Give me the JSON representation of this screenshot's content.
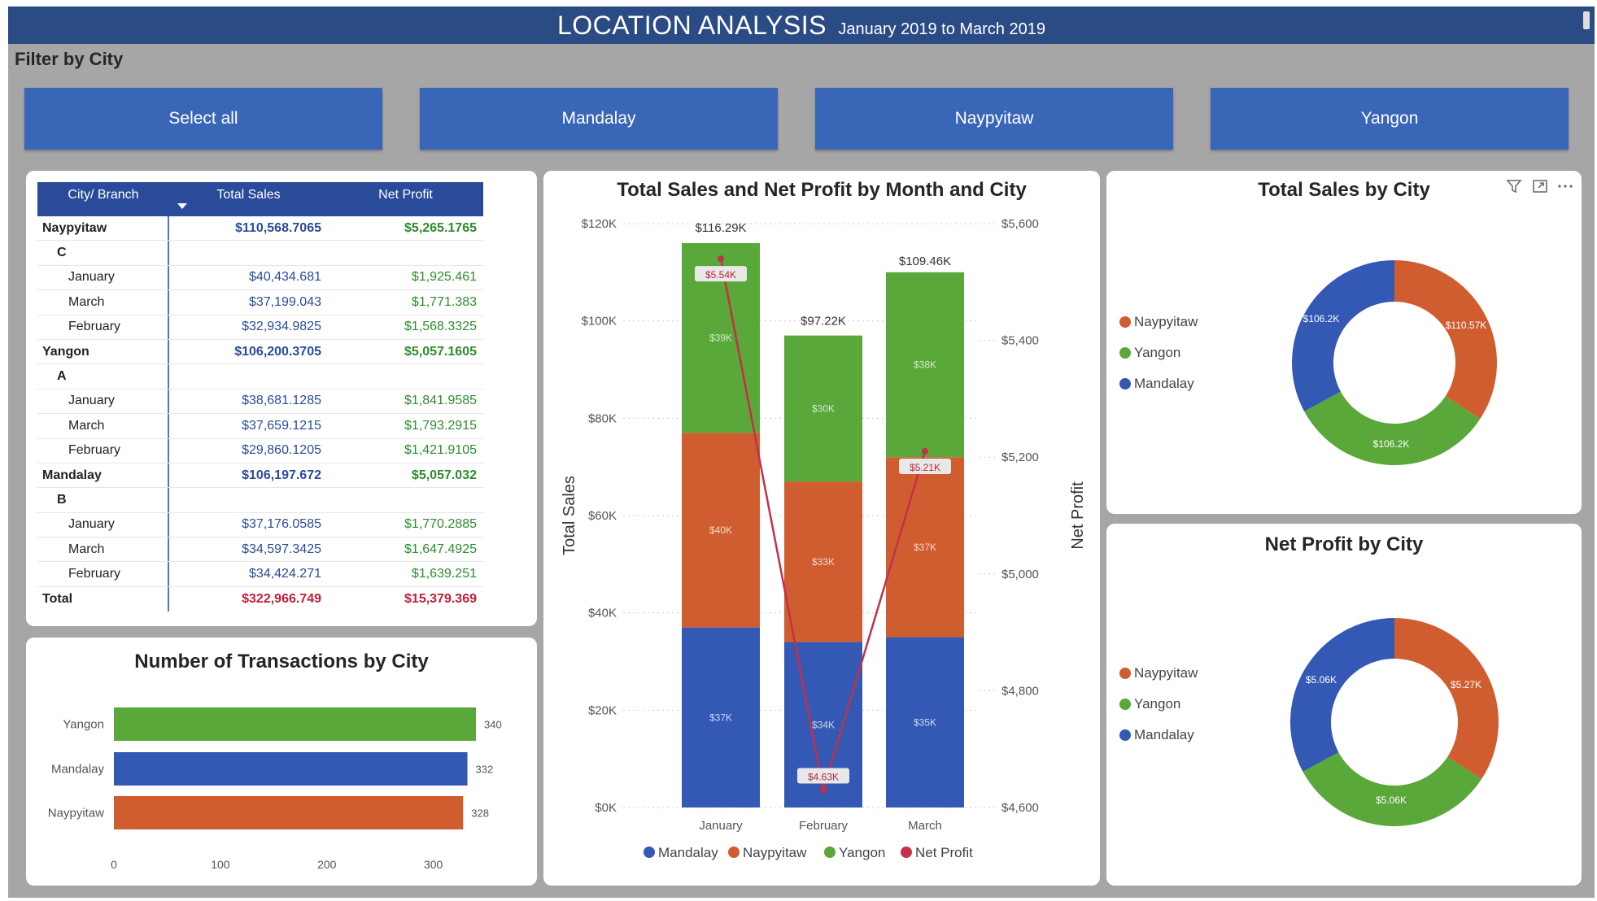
{
  "header": {
    "title": "LOCATION ANALYSIS",
    "subtitle": "January 2019 to March 2019"
  },
  "filter": {
    "label": "Filter by City",
    "buttons": [
      "Select all",
      "Mandalay",
      "Naypyitaw",
      "Yangon"
    ]
  },
  "colors": {
    "header_bg": "#2a4b84",
    "button_bg": "#3a66b8",
    "mandalay": "#3359b5",
    "naypyitaw": "#d05d30",
    "yangon": "#59a839",
    "net_profit": "#c3304a"
  },
  "matrix": {
    "headers": [
      "City/ Branch",
      "Total Sales",
      "Net Profit"
    ],
    "rows": [
      {
        "type": "city",
        "label": "Naypyitaw",
        "sales": "$110,568.7065",
        "profit": "$5,265.1765"
      },
      {
        "type": "branch",
        "label": "C",
        "sales": "",
        "profit": ""
      },
      {
        "type": "month",
        "label": "January",
        "sales": "$40,434.681",
        "profit": "$1,925.461"
      },
      {
        "type": "month",
        "label": "March",
        "sales": "$37,199.043",
        "profit": "$1,771.383"
      },
      {
        "type": "month",
        "label": "February",
        "sales": "$32,934.9825",
        "profit": "$1,568.3325"
      },
      {
        "type": "city",
        "label": "Yangon",
        "sales": "$106,200.3705",
        "profit": "$5,057.1605"
      },
      {
        "type": "branch",
        "label": "A",
        "sales": "",
        "profit": ""
      },
      {
        "type": "month",
        "label": "January",
        "sales": "$38,681.1285",
        "profit": "$1,841.9585"
      },
      {
        "type": "month",
        "label": "March",
        "sales": "$37,659.1215",
        "profit": "$1,793.2915"
      },
      {
        "type": "month",
        "label": "February",
        "sales": "$29,860.1205",
        "profit": "$1,421.9105"
      },
      {
        "type": "city",
        "label": "Mandalay",
        "sales": "$106,197.672",
        "profit": "$5,057.032"
      },
      {
        "type": "branch",
        "label": "B",
        "sales": "",
        "profit": ""
      },
      {
        "type": "month",
        "label": "January",
        "sales": "$37,176.0585",
        "profit": "$1,770.2885"
      },
      {
        "type": "month",
        "label": "March",
        "sales": "$34,597.3425",
        "profit": "$1,647.4925"
      },
      {
        "type": "month",
        "label": "February",
        "sales": "$34,424.271",
        "profit": "$1,639.251"
      },
      {
        "type": "total",
        "label": "Total",
        "sales": "$322,966.749",
        "profit": "$15,379.369"
      }
    ]
  },
  "chart_data": [
    {
      "id": "transactions",
      "type": "bar",
      "orientation": "horizontal",
      "title": "Number of Transactions by City",
      "categories": [
        "Yangon",
        "Mandalay",
        "Naypyitaw"
      ],
      "values": [
        340,
        332,
        328
      ],
      "value_labels": [
        "340",
        "332",
        "328"
      ],
      "colors": [
        "#59a839",
        "#3359b5",
        "#d05d30"
      ],
      "xlim": [
        0,
        340
      ],
      "xticks": [
        0,
        100,
        200,
        300
      ],
      "xtick_labels": [
        "0",
        "100",
        "200",
        "300"
      ]
    },
    {
      "id": "stacked",
      "type": "bar",
      "stacked": true,
      "title": "Total Sales and Net Profit by Month and City",
      "ylabel": "Total Sales",
      "y2label": "Net Profit",
      "categories": [
        "January",
        "February",
        "March"
      ],
      "ylim": [
        0,
        120000
      ],
      "yticks": [
        0,
        20000,
        40000,
        60000,
        80000,
        100000,
        120000
      ],
      "ytick_labels": [
        "$0K",
        "$20K",
        "$40K",
        "$60K",
        "$80K",
        "$100K",
        "$120K"
      ],
      "y2lim": [
        4600,
        5600
      ],
      "y2ticks": [
        4600,
        4800,
        5000,
        5200,
        5400,
        5600
      ],
      "y2tick_labels": [
        "$4,600",
        "$4,800",
        "$5,000",
        "$5,200",
        "$5,400",
        "$5,600"
      ],
      "series": [
        {
          "name": "Mandalay",
          "color": "#3359b5",
          "values": [
            37000,
            34000,
            35000
          ],
          "labels": [
            "$37K",
            "$34K",
            "$35K"
          ]
        },
        {
          "name": "Naypyitaw",
          "color": "#d05d30",
          "values": [
            40000,
            33000,
            37000
          ],
          "labels": [
            "$40K",
            "$33K",
            "$37K"
          ]
        },
        {
          "name": "Yangon",
          "color": "#59a839",
          "values": [
            39000,
            30000,
            38000
          ],
          "labels": [
            "$39K",
            "$30K",
            "$38K"
          ]
        }
      ],
      "totals": [
        116290,
        97220,
        109460
      ],
      "total_labels": [
        "$116.29K",
        "$97.22K",
        "$109.46K"
      ],
      "line": {
        "name": "Net Profit",
        "color": "#c3304a",
        "values": [
          5540,
          4630,
          5210
        ],
        "labels": [
          "$5.54K",
          "$4.63K",
          "$5.21K"
        ]
      },
      "legend": [
        "Mandalay",
        "Naypyitaw",
        "Yangon",
        "Net Profit"
      ],
      "legend_position": "bottom"
    },
    {
      "id": "sales_donut",
      "type": "pie",
      "donut": true,
      "title": "Total Sales by City",
      "categories": [
        "Naypyitaw",
        "Yangon",
        "Mandalay"
      ],
      "values": [
        110568.7065,
        106200.3705,
        106197.672
      ],
      "labels": [
        "$110.57K",
        "$106.2K",
        "$106.2K"
      ],
      "colors": [
        "#d05d30",
        "#59a839",
        "#3359b5"
      ],
      "legend_position": "left"
    },
    {
      "id": "profit_donut",
      "type": "pie",
      "donut": true,
      "title": "Net Profit by City",
      "categories": [
        "Naypyitaw",
        "Yangon",
        "Mandalay"
      ],
      "values": [
        5265.1765,
        5057.1605,
        5057.032
      ],
      "labels": [
        "$5.27K",
        "$5.06K",
        "$5.06K"
      ],
      "colors": [
        "#d05d30",
        "#59a839",
        "#3359b5"
      ],
      "legend_position": "left"
    }
  ],
  "visual_icons": [
    "filter-icon",
    "focus-mode-icon",
    "more-options-icon"
  ]
}
